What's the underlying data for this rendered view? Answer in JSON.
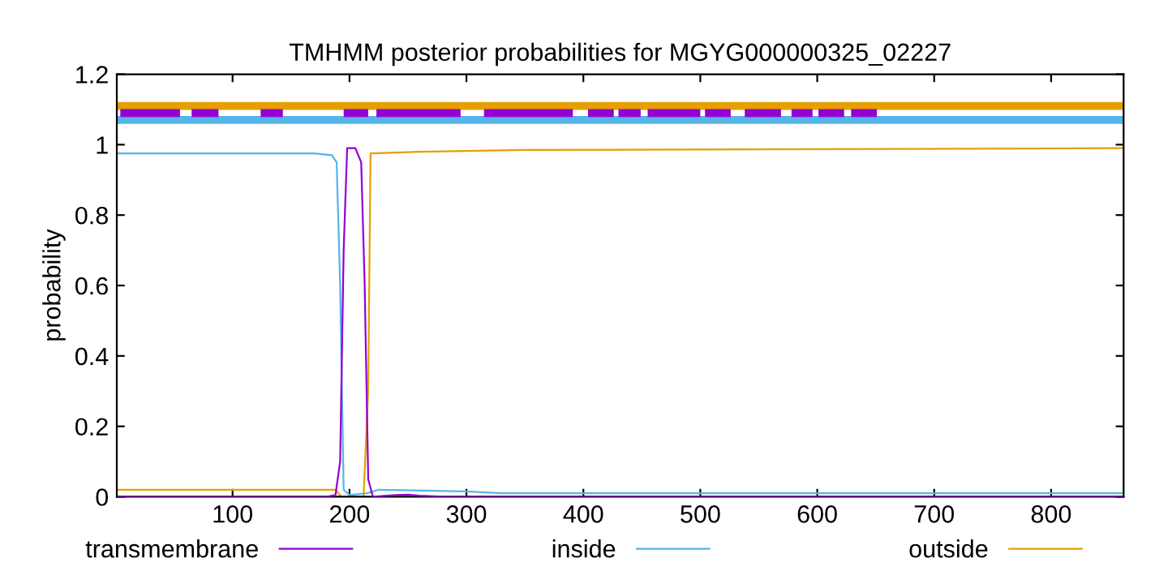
{
  "chart_data": {
    "type": "line",
    "title": "TMHMM posterior probabilities for MGYG000000325_02227",
    "ylabel": "probability",
    "xlim": [
      1,
      862
    ],
    "ylim": [
      0,
      1.2
    ],
    "xticks": [
      100,
      200,
      300,
      400,
      500,
      600,
      700,
      800
    ],
    "yticks": [
      0,
      0.2,
      0.4,
      0.6,
      0.8,
      1,
      1.2
    ],
    "legend": "bottom",
    "grid": false,
    "series": [
      {
        "name": "transmembrane",
        "color": "#9400d3",
        "x": [
          1,
          180,
          188,
          192,
          195,
          198,
          205,
          210,
          213,
          216,
          220,
          240,
          250,
          260,
          280,
          862
        ],
        "values": [
          0,
          0,
          0.005,
          0.1,
          0.7,
          0.99,
          0.99,
          0.95,
          0.6,
          0.05,
          0,
          0.005,
          0.006,
          0.003,
          0,
          0
        ]
      },
      {
        "name": "inside",
        "color": "#56b4e9",
        "x": [
          1,
          170,
          185,
          189,
          192,
          195,
          200,
          215,
          225,
          300,
          330,
          862
        ],
        "values": [
          0.975,
          0.975,
          0.97,
          0.95,
          0.6,
          0.02,
          0.005,
          0.01,
          0.02,
          0.015,
          0.01,
          0.01
        ]
      },
      {
        "name": "outside",
        "color": "#e69f00",
        "x": [
          1,
          188,
          193,
          212,
          216,
          218,
          260,
          350,
          862
        ],
        "values": [
          0.02,
          0.02,
          0,
          0,
          0.3,
          0.975,
          0.98,
          0.985,
          0.99
        ]
      },
      {
        "color": "#e69f00",
        "x": [
          1,
          862
        ],
        "values": [
          1.11,
          1.11
        ]
      },
      {
        "color": "#56b4e9",
        "x": [
          1,
          862
        ],
        "values": [
          1.07,
          1.07
        ]
      },
      {
        "color": "#9400d3",
        "x": [
          4,
          55,
          null,
          65,
          88,
          null,
          124,
          143,
          null,
          195,
          216,
          null,
          223,
          295,
          null,
          315,
          391,
          null,
          404,
          426,
          null,
          430,
          449,
          null,
          455,
          500,
          null,
          504,
          526,
          null,
          538,
          569,
          null,
          578,
          596,
          null,
          601,
          623,
          null,
          629,
          651
        ],
        "values": [
          1.09,
          1.09,
          null,
          1.09,
          1.09,
          null,
          1.09,
          1.09,
          null,
          1.09,
          1.09,
          null,
          1.09,
          1.09,
          null,
          1.09,
          1.09,
          null,
          1.09,
          1.09,
          null,
          1.09,
          1.09,
          null,
          1.09,
          1.09,
          null,
          1.09,
          1.09,
          null,
          1.09,
          1.09,
          null,
          1.09,
          1.09,
          null,
          1.09,
          1.09,
          null,
          1.09,
          1.09
        ]
      }
    ]
  }
}
